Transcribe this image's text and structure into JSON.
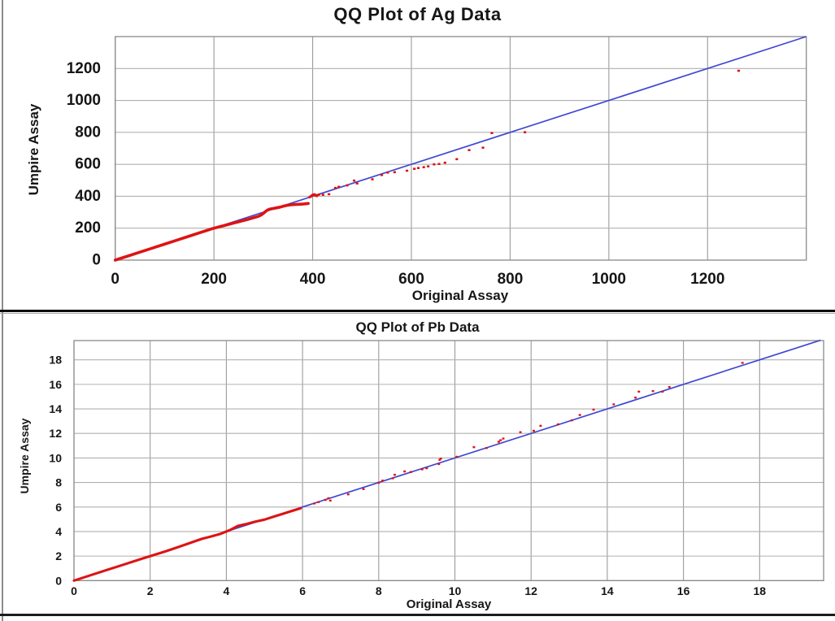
{
  "colors": {
    "point": "#dd1414",
    "reference_line": "#4047d2",
    "grid_vertical": "#9b9b9b",
    "grid_horizontal": "#b0b0b0",
    "plot_border": "#8a8a8a",
    "text": "#161616",
    "frame": "#000000",
    "background": "#ffffff"
  },
  "chart_data": [
    {
      "type": "scatter",
      "title": "QQ Plot of Ag Data",
      "xlabel": "Original Assay",
      "ylabel": "Umpire Assay",
      "xlim": [
        0,
        1400
      ],
      "ylim": [
        0,
        1400
      ],
      "xticks": [
        0,
        200,
        400,
        600,
        800,
        1000,
        1200
      ],
      "yticks": [
        0,
        200,
        400,
        600,
        800,
        1000,
        1200
      ],
      "grid": true,
      "legend": false,
      "reference_line": {
        "from": [
          0,
          0
        ],
        "to": [
          1400,
          1400
        ]
      },
      "dense_line": [
        [
          0,
          0
        ],
        [
          25,
          25
        ],
        [
          50,
          50
        ],
        [
          75,
          75
        ],
        [
          100,
          100
        ],
        [
          125,
          125
        ],
        [
          150,
          150
        ],
        [
          175,
          175
        ],
        [
          200,
          200
        ],
        [
          210,
          208
        ],
        [
          220,
          216
        ],
        [
          230,
          224
        ],
        [
          240,
          232
        ],
        [
          250,
          240
        ],
        [
          260,
          248
        ],
        [
          270,
          256
        ],
        [
          280,
          265
        ],
        [
          290,
          274
        ],
        [
          296,
          283
        ],
        [
          301,
          295
        ],
        [
          305,
          306
        ],
        [
          309,
          314
        ],
        [
          313,
          319
        ],
        [
          319,
          323
        ],
        [
          326,
          327
        ],
        [
          334,
          332
        ],
        [
          341,
          338
        ],
        [
          348,
          343
        ],
        [
          356,
          346
        ],
        [
          364,
          348
        ],
        [
          373,
          350
        ],
        [
          382,
          352
        ],
        [
          391,
          355
        ]
      ],
      "points": [
        [
          394,
          394
        ],
        [
          396,
          399
        ],
        [
          398,
          404
        ],
        [
          400,
          408
        ],
        [
          402,
          411
        ],
        [
          404,
          412
        ],
        [
          406,
          405
        ],
        [
          408,
          401
        ],
        [
          410,
          407
        ],
        [
          413,
          411
        ],
        [
          421,
          409
        ],
        [
          433,
          413
        ],
        [
          446,
          452
        ],
        [
          453,
          459
        ],
        [
          470,
          468
        ],
        [
          484,
          498
        ],
        [
          490,
          480
        ],
        [
          521,
          506
        ],
        [
          540,
          533
        ],
        [
          552,
          548
        ],
        [
          566,
          551
        ],
        [
          591,
          560
        ],
        [
          606,
          572
        ],
        [
          614,
          577
        ],
        [
          625,
          582
        ],
        [
          634,
          587
        ],
        [
          646,
          600
        ],
        [
          656,
          602
        ],
        [
          668,
          610
        ],
        [
          692,
          632
        ],
        [
          717,
          689
        ],
        [
          745,
          704
        ],
        [
          763,
          796
        ],
        [
          830,
          801
        ],
        [
          1263,
          1186
        ]
      ]
    },
    {
      "type": "scatter",
      "title": "QQ Plot of Pb Data",
      "xlabel": "Original Assay",
      "ylabel": "Umpire Assay",
      "xlim": [
        0,
        19.68
      ],
      "ylim": [
        0,
        19.57
      ],
      "xticks": [
        0,
        2,
        4,
        6,
        8,
        10,
        12,
        14,
        16,
        18
      ],
      "yticks": [
        0,
        2,
        4,
        6,
        8,
        10,
        12,
        14,
        16,
        18
      ],
      "grid": true,
      "legend": false,
      "reference_line": {
        "from": [
          0,
          0
        ],
        "to": [
          19.6,
          19.6
        ]
      },
      "dense_line": [
        [
          0,
          0
        ],
        [
          0.6,
          0.6
        ],
        [
          1.2,
          1.2
        ],
        [
          1.8,
          1.8
        ],
        [
          2.4,
          2.38
        ],
        [
          2.8,
          2.8
        ],
        [
          3.1,
          3.13
        ],
        [
          3.35,
          3.4
        ],
        [
          3.6,
          3.6
        ],
        [
          3.85,
          3.82
        ],
        [
          4.1,
          4.13
        ],
        [
          4.3,
          4.46
        ],
        [
          4.55,
          4.63
        ],
        [
          4.75,
          4.8
        ],
        [
          5.0,
          4.97
        ],
        [
          5.25,
          5.22
        ],
        [
          5.5,
          5.46
        ],
        [
          5.72,
          5.68
        ],
        [
          5.95,
          5.9
        ]
      ],
      "points": [
        [
          6.31,
          6.29
        ],
        [
          6.42,
          6.4
        ],
        [
          6.6,
          6.58
        ],
        [
          6.68,
          6.72
        ],
        [
          6.73,
          6.53
        ],
        [
          7.2,
          7.03
        ],
        [
          7.6,
          7.46
        ],
        [
          8.0,
          7.98
        ],
        [
          8.1,
          8.15
        ],
        [
          8.37,
          8.34
        ],
        [
          8.42,
          8.63
        ],
        [
          8.68,
          8.9
        ],
        [
          8.84,
          8.85
        ],
        [
          9.14,
          9.07
        ],
        [
          9.26,
          9.16
        ],
        [
          9.58,
          9.5
        ],
        [
          9.6,
          9.85
        ],
        [
          9.63,
          9.95
        ],
        [
          10.05,
          10.1
        ],
        [
          10.5,
          10.88
        ],
        [
          10.83,
          10.81
        ],
        [
          11.15,
          11.32
        ],
        [
          11.2,
          11.45
        ],
        [
          11.27,
          11.58
        ],
        [
          11.72,
          12.1
        ],
        [
          12.07,
          12.22
        ],
        [
          12.25,
          12.62
        ],
        [
          12.71,
          12.74
        ],
        [
          13.07,
          13.07
        ],
        [
          13.28,
          13.5
        ],
        [
          13.64,
          13.94
        ],
        [
          14.17,
          14.37
        ],
        [
          14.74,
          14.92
        ],
        [
          14.83,
          15.41
        ],
        [
          15.2,
          15.45
        ],
        [
          15.45,
          15.41
        ],
        [
          15.63,
          15.78
        ],
        [
          17.55,
          17.75
        ]
      ]
    }
  ]
}
